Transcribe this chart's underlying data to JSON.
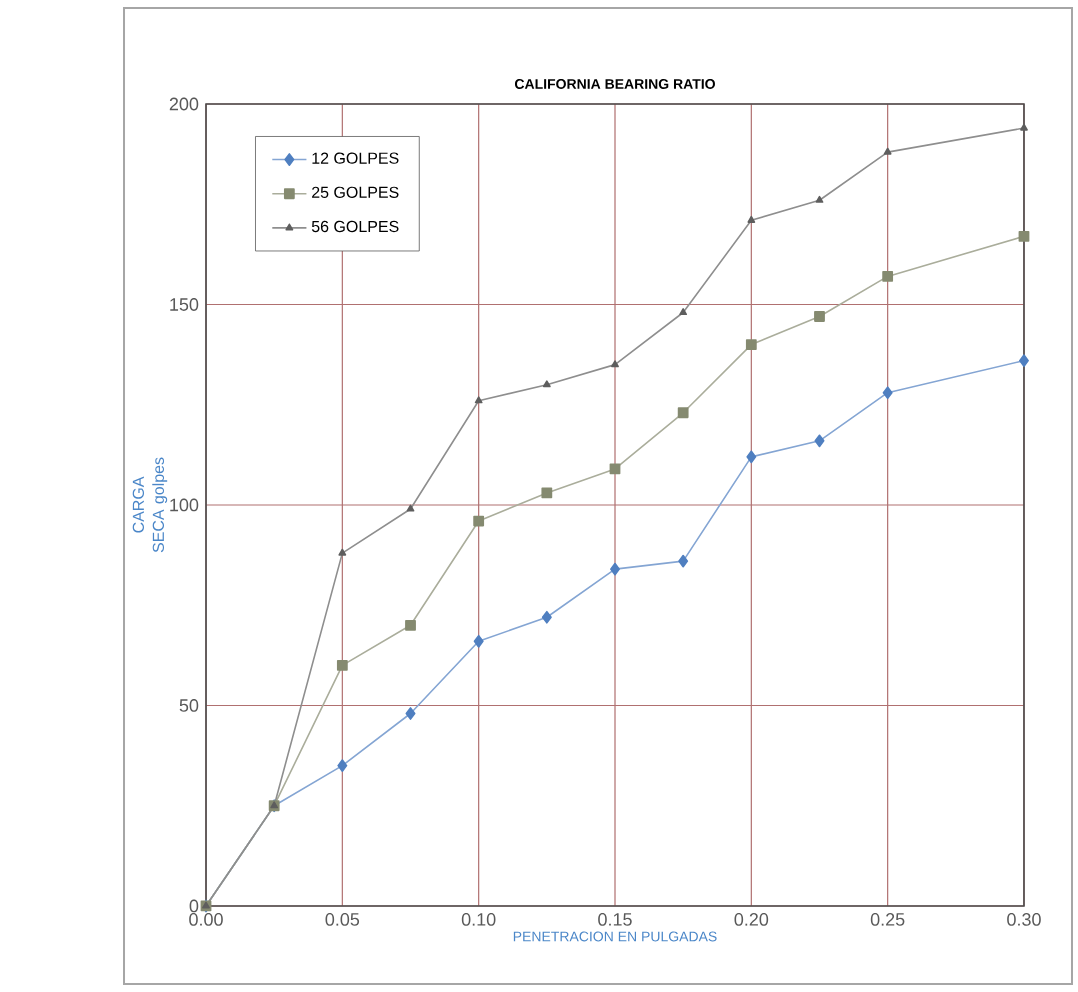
{
  "chart_data": {
    "type": "line",
    "title": "CALIFORNIA BEARING  RATIO",
    "xlabel": "PENETRACION EN PULGADAS",
    "ylabel": "CARGA SECA golpes",
    "x": [
      0,
      0.025,
      0.05,
      0.075,
      0.1,
      0.125,
      0.15,
      0.175,
      0.2,
      0.225,
      0.25,
      0.3
    ],
    "series": [
      {
        "name": "12 GOLPES",
        "color": "#4f7fc0",
        "marker": "diamond",
        "values": [
          0,
          25,
          35,
          48,
          66,
          72,
          84,
          86,
          112,
          116,
          128,
          136
        ]
      },
      {
        "name": "25 GOLPES",
        "color": "#858a70",
        "marker": "square",
        "values": [
          0,
          25,
          60,
          70,
          96,
          103,
          109,
          123,
          140,
          147,
          157,
          167
        ]
      },
      {
        "name": "56 GOLPES",
        "color": "#5e5e5e",
        "marker": "triangle",
        "values": [
          0,
          25,
          88,
          99,
          126,
          130,
          135,
          148,
          171,
          176,
          188,
          194
        ]
      }
    ],
    "xlim": [
      0,
      0.3
    ],
    "ylim": [
      0,
      200
    ],
    "xticks": [
      {
        "value": 0,
        "label": "0.00"
      },
      {
        "value": 0.05,
        "label": "0.05"
      },
      {
        "value": 0.1,
        "label": "0.10"
      },
      {
        "value": 0.15,
        "label": "0.15"
      },
      {
        "value": 0.2,
        "label": "0.20"
      },
      {
        "value": 0.25,
        "label": "0.25"
      },
      {
        "value": 0.3,
        "label": "0.30"
      }
    ],
    "yticks": [
      0,
      50,
      100,
      150,
      200
    ],
    "grid": true,
    "legend": "top left",
    "line_style": "solid"
  }
}
